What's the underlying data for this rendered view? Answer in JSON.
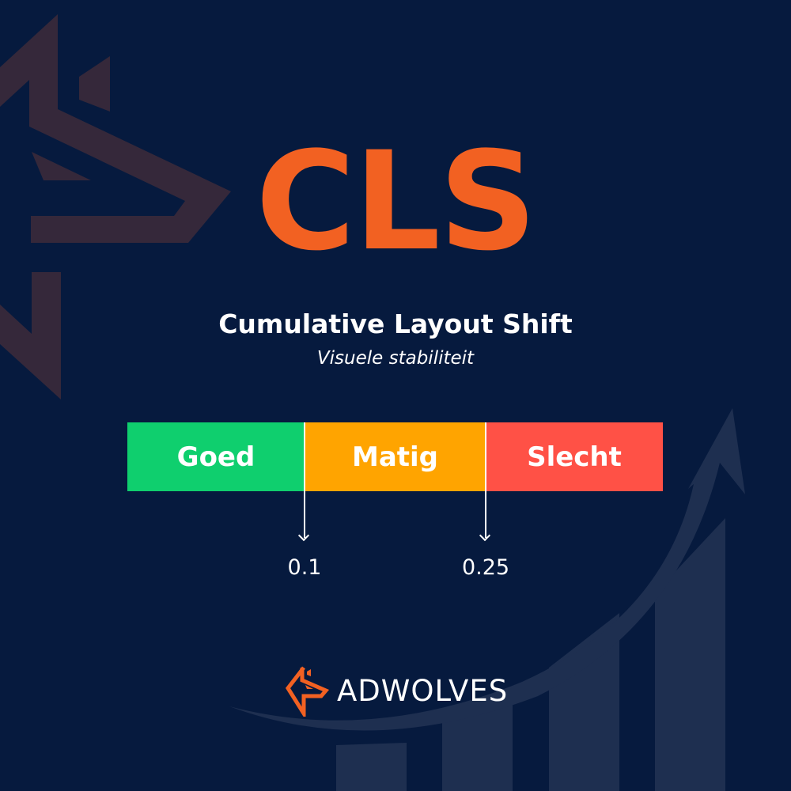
{
  "heading": "CLS",
  "title": "Cumulative Layout Shift",
  "subtitle": "Visuele stabiliteit",
  "scale": {
    "segments": [
      {
        "label": "Goed",
        "color": "#0fcf6e"
      },
      {
        "label": "Matig",
        "color": "#ffa400"
      },
      {
        "label": "Slecht",
        "color": "#ff5146"
      }
    ],
    "thresholds": [
      "0.1",
      "0.25"
    ]
  },
  "brand": {
    "name": "ADWOLVES",
    "accent": "#f26122"
  },
  "colors": {
    "background": "#061a3e",
    "heading": "#f26122"
  }
}
